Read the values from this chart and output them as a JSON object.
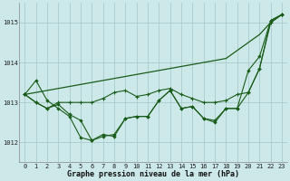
{
  "background_color": "#cce8e8",
  "plot_background": "#cce8e8",
  "grid_color": "#aacccc",
  "line_color": "#1a5c1a",
  "title": "Graphe pression niveau de la mer (hPa)",
  "ylim": [
    1011.5,
    1015.5
  ],
  "yticks": [
    1012,
    1013,
    1014,
    1015
  ],
  "xlim": [
    -0.5,
    23.5
  ],
  "xticks": [
    0,
    1,
    2,
    3,
    4,
    5,
    6,
    7,
    8,
    9,
    10,
    11,
    12,
    13,
    14,
    15,
    16,
    17,
    18,
    19,
    20,
    21,
    22,
    23
  ],
  "series1_no_marker": [
    1013.2,
    1013.25,
    1013.3,
    1013.35,
    1013.4,
    1013.45,
    1013.5,
    1013.55,
    1013.6,
    1013.65,
    1013.7,
    1013.75,
    1013.8,
    1013.85,
    1013.9,
    1013.95,
    1014.0,
    1014.05,
    1014.1,
    1014.3,
    1014.5,
    1014.7,
    1015.0,
    1015.2
  ],
  "series2_diamond": [
    1013.2,
    1013.55,
    1013.05,
    1012.85,
    1012.65,
    1012.12,
    1012.05,
    1012.15,
    1012.2,
    1012.6,
    1012.65,
    1012.65,
    1013.05,
    1013.3,
    1012.85,
    1012.9,
    1012.6,
    1012.55,
    1012.85,
    1012.85,
    1013.8,
    1014.15,
    1015.05,
    1015.2
  ],
  "series3_diamond": [
    1013.2,
    1013.0,
    1012.85,
    1012.95,
    1012.7,
    1012.55,
    1012.05,
    1012.2,
    1012.15,
    1012.6,
    1012.65,
    1012.65,
    1013.05,
    1013.3,
    1012.85,
    1012.9,
    1012.6,
    1012.5,
    1012.85,
    1012.85,
    1013.25,
    1013.85,
    1015.05,
    1015.2
  ],
  "series4_cross": [
    1013.2,
    1013.0,
    1012.85,
    1013.0,
    1013.0,
    1013.0,
    1013.0,
    1013.1,
    1013.25,
    1013.3,
    1013.15,
    1013.2,
    1013.3,
    1013.35,
    1013.2,
    1013.1,
    1013.0,
    1013.0,
    1013.05,
    1013.2,
    1013.25,
    1013.85,
    1015.0,
    1015.2
  ]
}
